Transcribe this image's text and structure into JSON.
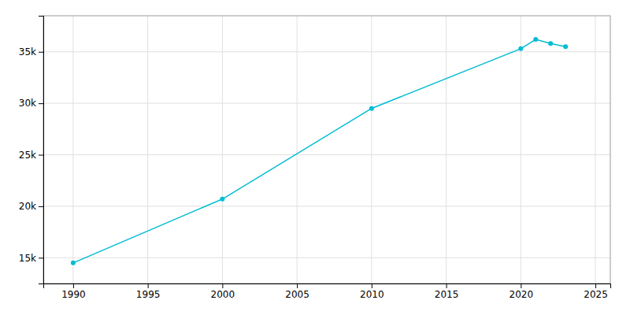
{
  "chart_data": {
    "type": "line",
    "x": [
      1990,
      2000,
      2010,
      2020,
      2021,
      2022,
      2023
    ],
    "values": [
      14500,
      20700,
      29500,
      35300,
      36200,
      35800,
      35500
    ],
    "color": "#00bcd4",
    "marker": "circle",
    "xlim": [
      1988,
      2026
    ],
    "ylim": [
      12500,
      38500
    ],
    "xticks": [
      1990,
      1995,
      2000,
      2005,
      2010,
      2015,
      2020,
      2025
    ],
    "yticks": [
      {
        "value": 15000,
        "label": "15k"
      },
      {
        "value": 20000,
        "label": "20k"
      },
      {
        "value": 25000,
        "label": "25k"
      },
      {
        "value": 30000,
        "label": "30k"
      },
      {
        "value": 35000,
        "label": "35k"
      }
    ],
    "grid": true
  }
}
